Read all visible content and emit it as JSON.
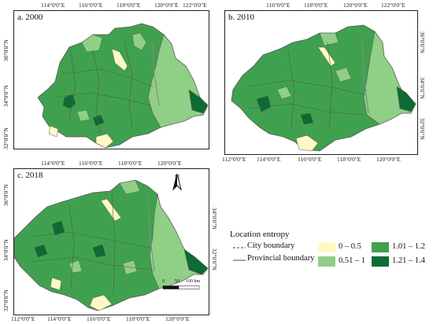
{
  "panels": [
    {
      "label": "a. 2000",
      "top_ticks": [
        "114°0'0\"E",
        "116°0'0\"E",
        "118°0'0\"E",
        "120°0'0\"E",
        "122°0'0\"E"
      ],
      "left_ticks": [
        "36°0'0\"N",
        "34°0'0\"N",
        "32°0'0\"N"
      ],
      "bottom_ticks": [],
      "right_ticks": []
    },
    {
      "label": "b. 2010",
      "top_ticks": [
        "116°0'0\"E",
        "118°0'0\"E",
        "120°0'0\"E",
        "122°0'0\"E"
      ],
      "left_ticks": [],
      "bottom_ticks": [
        "112°0'0\"E",
        "114°0'0\"E",
        "116°0'0\"E",
        "118°0'0\"E",
        "120°0'0\"E"
      ],
      "right_ticks": [
        "36°0'0\"N",
        "34°0'0\"N",
        "32°0'0\"N"
      ]
    },
    {
      "label": "c. 2018",
      "top_ticks": [
        "114°0'0\"E",
        "116°0'0\"E",
        "118°0'0\"E",
        "120°0'0\"E"
      ],
      "left_ticks": [
        "36°0'0\"N",
        "34°0'0\"N",
        "32°0'0\"N"
      ],
      "bottom_ticks": [
        "112°0'0\"E",
        "114°0'0\"E",
        "116°0'0\"E",
        "118°0'0\"E",
        "120°0'0\"E"
      ],
      "right_ticks": [
        "34°0'0\"N",
        "32°0'0\"N"
      ]
    }
  ],
  "north_arrow": "N",
  "scale_bar": [
    "0",
    "50",
    "100 km"
  ],
  "legend": {
    "title": "Location entropy",
    "city_boundary": "City boundary",
    "provincial_boundary": "Provincial boundary",
    "classes": [
      {
        "label": "0 – 0.5",
        "color": "#fff9c4"
      },
      {
        "label": "0.51 – 1",
        "color": "#8fcf86"
      },
      {
        "label": "1.01 – 1.2",
        "color": "#3fa14f"
      },
      {
        "label": "1.21 – 1.4",
        "color": "#0f6a33"
      }
    ]
  }
}
